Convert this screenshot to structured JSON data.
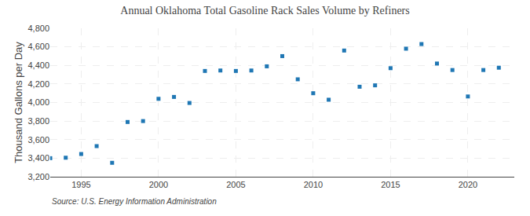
{
  "chart_data": {
    "type": "scatter",
    "title": "Annual Oklahoma Total Gasoline Rack Sales Volume by Refiners",
    "ylabel": "Thousand Gallons per Day",
    "annotations": [
      "Source: U.S. Energy Information Administration"
    ],
    "x": [
      1993,
      1994,
      1995,
      1996,
      1997,
      1998,
      1999,
      2000,
      2001,
      2002,
      2003,
      2004,
      2005,
      2006,
      2007,
      2008,
      2009,
      2010,
      2011,
      2012,
      2013,
      2014,
      2015,
      2016,
      2017,
      2018,
      2019,
      2020,
      2021,
      2022
    ],
    "values": [
      3400,
      3405,
      3445,
      3530,
      3350,
      3790,
      3800,
      4040,
      4060,
      3995,
      4340,
      4345,
      4340,
      4345,
      4390,
      4500,
      4250,
      4100,
      4030,
      4560,
      4170,
      4185,
      4370,
      4580,
      4630,
      4420,
      4350,
      4065,
      4350,
      4375
    ],
    "marker": "square",
    "xlim": [
      1993,
      2023
    ],
    "xticks": [
      1995,
      2000,
      2005,
      2010,
      2015,
      2020
    ],
    "ylim": [
      3200,
      4800
    ],
    "yticks": [
      {
        "value": 3200,
        "label": "3,200"
      },
      {
        "value": 3400,
        "label": "3,400"
      },
      {
        "value": 3600,
        "label": "3,600"
      },
      {
        "value": 3800,
        "label": "3,800"
      },
      {
        "value": 4000,
        "label": "4,000"
      },
      {
        "value": 4200,
        "label": "4,200"
      },
      {
        "value": 4400,
        "label": "4,400"
      },
      {
        "value": 4600,
        "label": "4,600"
      },
      {
        "value": 4800,
        "label": "4,800"
      }
    ],
    "grid": true
  }
}
